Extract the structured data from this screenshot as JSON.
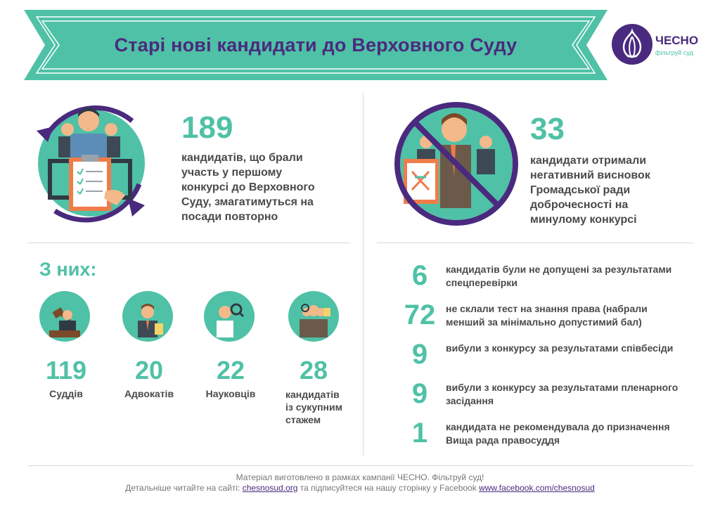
{
  "header": {
    "title": "Старі нові кандидати до Верховного Суду"
  },
  "logo": {
    "name": "ЧЕСНО",
    "tagline": "фільтруй суд"
  },
  "left_block": {
    "number": "189",
    "text": "кандидатів, що брали участь у першому конкурсі до Верховного Суду, змагатимуться на посади повторно"
  },
  "right_block": {
    "number": "33",
    "text": "кандидати отримали негативний висновок Громадської ради доброчесності на минулому конкурсі"
  },
  "breakdown": {
    "heading": "З них:",
    "items": [
      {
        "value": "119",
        "label": "Суддів",
        "icon": "judge-icon"
      },
      {
        "value": "20",
        "label": "Адвокатів",
        "icon": "lawyer-icon"
      },
      {
        "value": "22",
        "label": "Науковців",
        "icon": "scientist-icon"
      },
      {
        "value": "28",
        "label": "кандидатів із сукупним стажем",
        "icon": "combined-experience-icon"
      }
    ]
  },
  "results": [
    {
      "value": "6",
      "text": "кандидатів були не допущені за результатами спецперевірки"
    },
    {
      "value": "72",
      "text": "не склали тест на знання права (набрали менший за мінімально допустимий бал)"
    },
    {
      "value": "9",
      "text": "вибули з конкурсу за результатами співбесіди"
    },
    {
      "value": "9",
      "text": "вибули з конкурсу за результатами пленарного засідання"
    },
    {
      "value": "1",
      "text": "кандидата не рекомендувала до призначення Вища рада правосуддя"
    }
  ],
  "footer": {
    "line1": "Матеріал виготовлено в рамках кампанії ЧЕСНО. Фільтруй суд!",
    "prefix": "Детальніше читайте на сайті:",
    "site_link": "chesnosud.org",
    "middle": "та підписуйтеся на нашу сторінку у Facebook",
    "fb_link": "www.facebook.com/chesnosud"
  },
  "colors": {
    "teal": "#4fc1a6",
    "purple": "#4a2a7e",
    "text": "#4a4a4a",
    "skin": "#f3b98a",
    "accent_orange": "#f07c4a"
  }
}
